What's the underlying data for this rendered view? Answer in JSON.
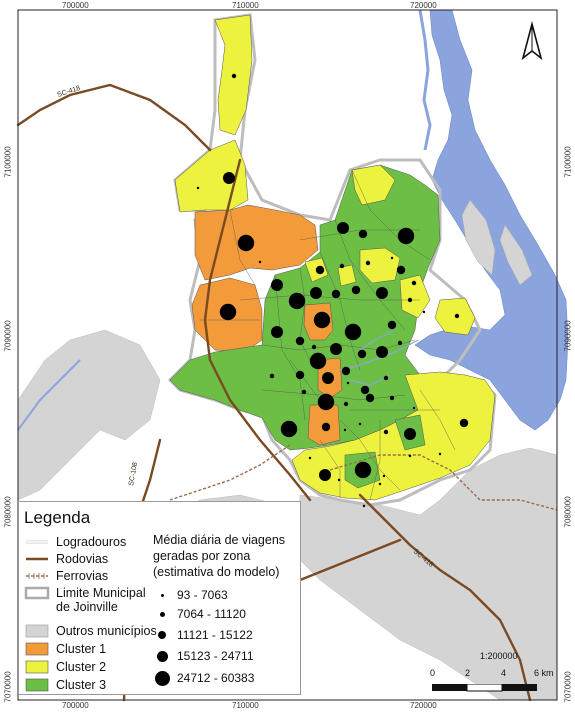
{
  "coordinates": {
    "top_x": [
      "700000",
      "710000",
      "720000"
    ],
    "bottom_x": [
      "700000",
      "710000",
      "720000"
    ],
    "left_y": [
      "7100000",
      "7090000",
      "7080000",
      "7070000"
    ],
    "right_y": [
      "7100000",
      "7090000",
      "7080000",
      "7070000"
    ]
  },
  "road_labels": {
    "sc418_nw": "SC-418",
    "sc108": "SC-108",
    "sc418_se": "SC-418"
  },
  "north_arrow": {
    "icon": "north-arrow-icon"
  },
  "legend": {
    "title": "Legenda",
    "items": [
      {
        "label": "Logradouros",
        "icon": "line-thin-white"
      },
      {
        "label": "Rodovias",
        "icon": "line-brown",
        "color": "#7a4a22"
      },
      {
        "label": "Ferrovias",
        "icon": "railway-line",
        "color": "#9a6a4a"
      },
      {
        "label": "Limite Municipal de Joinville",
        "icon": "outline-grey"
      },
      {
        "label": "Outros municípios",
        "icon": "fill-grey",
        "color": "#d4d4d4"
      },
      {
        "label": "Cluster 1",
        "icon": "fill-orange",
        "color": "#f39a3a"
      },
      {
        "label": "Cluster 2",
        "icon": "fill-yellow",
        "color": "#ecf23d"
      },
      {
        "label": "Cluster 3",
        "icon": "fill-green",
        "color": "#6cbe45"
      }
    ],
    "bubbles_title": "Média diária de viagens geradas por zona (estimativa do modelo)",
    "bubbles": [
      {
        "label": "93 - 7063",
        "level": 1
      },
      {
        "label": "7064 - 11120",
        "level": 2
      },
      {
        "label": "11121 - 15122",
        "level": 3
      },
      {
        "label": "15123 - 24711",
        "level": 4
      },
      {
        "label": "24712 - 60383",
        "level": 5
      }
    ]
  },
  "scale": {
    "ratio": "1:200000",
    "ticks": [
      "0",
      "2",
      "4",
      "6 km"
    ]
  },
  "colors": {
    "water": "#8ba4dd",
    "background": "#ffffff",
    "other_municipality": "#d4d4d4",
    "cluster1": "#f39a3a",
    "cluster2": "#ecf23d",
    "cluster3": "#6cbe45",
    "road": "#7a4a22",
    "railway": "#9a6a4a"
  }
}
